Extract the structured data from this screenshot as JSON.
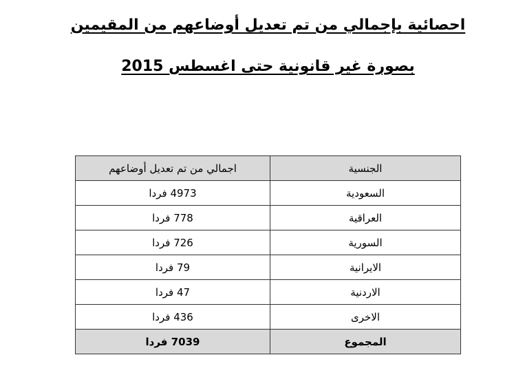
{
  "title_line1": "احصائية بإجمالي من تم تعديل أوضاعهم من المقيمين",
  "title_line2": "بصورة غير قانونية حتى اغسطس 2015",
  "table": {
    "headers": [
      "الجنسية",
      "اجمالي من تم تعديل أوضاعهم"
    ],
    "rows": [
      [
        "السعودية",
        "4973 فردا"
      ],
      [
        "العراقية",
        "778 فردا"
      ],
      [
        "السورية",
        "726 فردا"
      ],
      [
        "الايرانية",
        "79 فردا"
      ],
      [
        "الاردنية",
        "47 فردا"
      ],
      [
        "الاخرى",
        "436 فردا"
      ]
    ],
    "total": [
      "المجموع",
      "7039 فردا"
    ]
  },
  "colors": {
    "header_bg": "#d9d9d9"
  }
}
